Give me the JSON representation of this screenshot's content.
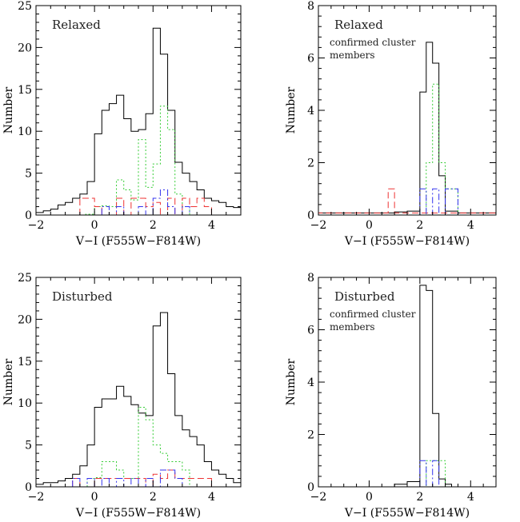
{
  "chart_data": [
    {
      "type": "histogram",
      "panel_label": "Relaxed",
      "panel_sublabel": [],
      "xlabel": "V−I (F555W−F814W)",
      "ylabel": "Number",
      "xlim": [
        -2,
        5
      ],
      "ylim": [
        0,
        25
      ],
      "xticks": [
        -2,
        0,
        2,
        4
      ],
      "yticks": [
        0,
        5,
        10,
        15,
        20,
        25
      ],
      "xtick_labels": [
        "−2",
        "0",
        "2",
        "4"
      ],
      "ytick_labels": [
        "0",
        "5",
        "10",
        "15",
        "20",
        "25"
      ],
      "series": [
        {
          "style": "solid",
          "color": "#000000",
          "edges": [
            -2.2,
            -2,
            -1.75,
            -1.5,
            -1.25,
            -1,
            -0.75,
            -0.5,
            -0.25,
            0,
            0.25,
            0.5,
            0.75,
            1,
            1.25,
            1.5,
            1.75,
            2,
            2.25,
            2.5,
            2.75,
            3,
            3.25,
            3.5,
            3.75,
            4,
            4.25,
            4.5,
            4.75,
            5
          ],
          "values": [
            0.3,
            0.3,
            0.5,
            0.7,
            1.2,
            1.5,
            2.0,
            2.5,
            4.0,
            9.7,
            12.5,
            13.3,
            14.3,
            11.5,
            10.0,
            10.2,
            12.1,
            22.3,
            19.2,
            12.5,
            6.3,
            5.0,
            4.0,
            3.0,
            2.0,
            1.7,
            1.5,
            1.0,
            0.9
          ]
        },
        {
          "style": "dotted",
          "color": "#33cc33",
          "edges": [
            -0.3,
            0,
            0.25,
            0.5,
            0.75,
            1,
            1.25,
            1.5,
            1.75,
            2,
            2.25,
            2.5,
            2.75,
            3,
            3.25,
            3.5
          ],
          "values": [
            0.1,
            1.0,
            1.1,
            1.0,
            4.2,
            3.0,
            1.8,
            9.0,
            3.3,
            6.1,
            13.0,
            10.2,
            2.5,
            1.0,
            0.0
          ]
        },
        {
          "style": "dashed",
          "color": "#ee3333",
          "edges": [
            -0.5,
            -0.25,
            0,
            0.25,
            0.5,
            0.75,
            1,
            1.25,
            1.5,
            1.75,
            2,
            2.25,
            2.5,
            2.75,
            3,
            3.25,
            3.5,
            3.75,
            4
          ],
          "values": [
            2.0,
            2.0,
            1.0,
            0.0,
            0.0,
            2.0,
            0.0,
            2.0,
            2.0,
            1.0,
            1.5,
            0.0,
            2.0,
            0.0,
            2.0,
            1.0,
            2.0,
            1.0
          ]
        },
        {
          "style": "dashdot",
          "color": "#3333ee",
          "edges": [
            0.25,
            0.5,
            0.75,
            1,
            1.25,
            1.5,
            1.75,
            2,
            2.25,
            2.5,
            2.75,
            3,
            3.25,
            3.5
          ],
          "values": [
            1.0,
            0.0,
            1.0,
            0.0,
            0.0,
            1.0,
            0.0,
            2.0,
            3.0,
            1.0,
            0.0,
            1.0,
            0.0
          ]
        }
      ]
    },
    {
      "type": "histogram",
      "panel_label": "Relaxed",
      "panel_sublabel": [
        "confirmed cluster",
        "members"
      ],
      "xlabel": "V−I (F555W−F814W)",
      "ylabel": "Number",
      "xlim": [
        -2,
        5
      ],
      "ylim": [
        0,
        8
      ],
      "xticks": [
        -2,
        0,
        2,
        4
      ],
      "yticks": [
        0,
        2,
        4,
        6,
        8
      ],
      "xtick_labels": [
        "−2",
        "0",
        "2",
        "4"
      ],
      "ytick_labels": [
        "0",
        "2",
        "4",
        "6",
        "8"
      ],
      "series": [
        {
          "style": "solid",
          "color": "#000000",
          "edges": [
            -2.2,
            1,
            1.5,
            2,
            2.25,
            2.5,
            2.75,
            3,
            3.5,
            5
          ],
          "values": [
            0.08,
            0.12,
            0.15,
            4.7,
            6.6,
            5.8,
            1.5,
            0.15,
            0.08
          ]
        },
        {
          "style": "dotted",
          "color": "#33cc33",
          "edges": [
            2,
            2.25,
            2.5,
            2.75,
            3,
            3.5
          ],
          "values": [
            0.0,
            2.0,
            5.0,
            2.0,
            1.0
          ]
        },
        {
          "style": "dashed",
          "color": "#ee3333",
          "edges": [
            -2.2,
            0.75,
            1,
            2,
            5
          ],
          "values": [
            0.08,
            1.0,
            0.08,
            0.08
          ]
        },
        {
          "style": "dashdot",
          "color": "#3333ee",
          "edges": [
            2,
            2.25,
            2.5,
            2.75,
            3,
            3.5
          ],
          "values": [
            1.0,
            0.0,
            1.0,
            0.0,
            1.0
          ]
        }
      ]
    },
    {
      "type": "histogram",
      "panel_label": "Disturbed",
      "panel_sublabel": [],
      "xlabel": "V−I (F555W−F814W)",
      "ylabel": "Number",
      "xlim": [
        -2,
        5
      ],
      "ylim": [
        0,
        25
      ],
      "xticks": [
        -2,
        0,
        2,
        4
      ],
      "yticks": [
        0,
        5,
        10,
        15,
        20,
        25
      ],
      "xtick_labels": [
        "−2",
        "0",
        "2",
        "4"
      ],
      "ytick_labels": [
        "0",
        "5",
        "10",
        "15",
        "20",
        "25"
      ],
      "series": [
        {
          "style": "solid",
          "color": "#000000",
          "edges": [
            -2.2,
            -2,
            -1.75,
            -1.5,
            -1.25,
            -1,
            -0.75,
            -0.5,
            -0.25,
            0,
            0.25,
            0.5,
            0.75,
            1,
            1.25,
            1.5,
            1.75,
            2,
            2.25,
            2.5,
            2.75,
            3,
            3.25,
            3.5,
            3.75,
            4,
            4.25,
            4.5,
            4.75,
            5
          ],
          "values": [
            0.3,
            0.3,
            0.5,
            0.5,
            0.7,
            1.0,
            1.5,
            2.5,
            5.0,
            9.5,
            10.5,
            10.5,
            12.0,
            10.8,
            9.8,
            8.8,
            8.5,
            19.2,
            20.8,
            13.5,
            8.5,
            6.8,
            6.0,
            5.0,
            3.0,
            2.0,
            1.5,
            1.0,
            0.5
          ]
        },
        {
          "style": "dotted",
          "color": "#33cc33",
          "edges": [
            -0.25,
            0,
            0.25,
            0.5,
            0.75,
            1,
            1.25,
            1.5,
            1.75,
            2,
            2.25,
            2.5,
            2.75,
            3,
            3.25
          ],
          "values": [
            1.0,
            1.1,
            3.0,
            3.0,
            2.0,
            1.0,
            1.0,
            9.5,
            8.0,
            5.0,
            4.0,
            3.0,
            3.0,
            2.0
          ]
        },
        {
          "style": "dashed",
          "color": "#ee3333",
          "edges": [
            -0.75,
            -0.5,
            0,
            0.5,
            1,
            1.5,
            1.75,
            2,
            2.25,
            2.5,
            2.75,
            3,
            3.25,
            3.5,
            3.75,
            4
          ],
          "values": [
            1.0,
            0.0,
            1.0,
            1.0,
            1.0,
            1.0,
            0.0,
            1.5,
            1.0,
            2.0,
            1.0,
            1.0,
            1.0,
            1.0,
            1.0
          ]
        },
        {
          "style": "dashdot",
          "color": "#3333ee",
          "edges": [
            -0.75,
            -0.5,
            -0.25,
            0,
            0.25,
            0.5,
            0.75,
            1,
            1.25,
            1.5,
            1.75,
            2,
            2.25,
            2.5,
            2.75,
            3
          ],
          "values": [
            1.0,
            0.0,
            1.0,
            0.0,
            1.0,
            0.0,
            1.0,
            0.0,
            1.0,
            0.0,
            1.0,
            0.0,
            2.0,
            2.0,
            1.0
          ]
        }
      ]
    },
    {
      "type": "histogram",
      "panel_label": "Disturbed",
      "panel_sublabel": [
        "confirmed cluster",
        "members"
      ],
      "xlabel": "V−I (F555W−F814W)",
      "ylabel": "Number",
      "xlim": [
        -2,
        5
      ],
      "ylim": [
        0,
        8
      ],
      "xticks": [
        -2,
        0,
        2,
        4
      ],
      "yticks": [
        0,
        2,
        4,
        6,
        8
      ],
      "xtick_labels": [
        "−2",
        "0",
        "2",
        "4"
      ],
      "ytick_labels": [
        "0",
        "2",
        "4",
        "6",
        "8"
      ],
      "series": [
        {
          "style": "solid",
          "color": "#000000",
          "edges": [
            1,
            1.5,
            2,
            2.25,
            2.5,
            2.75,
            3,
            3.25,
            3.5
          ],
          "values": [
            0.1,
            0.2,
            7.7,
            7.5,
            2.8,
            0.3,
            0.1,
            0.0
          ]
        },
        {
          "style": "dotted",
          "color": "#33cc33",
          "edges": [
            2,
            2.25,
            2.5,
            2.75,
            3,
            3.25
          ],
          "values": [
            0.0,
            1.0,
            1.0,
            1.0,
            0.0
          ]
        },
        {
          "style": "dashdot",
          "color": "#3333ee",
          "edges": [
            2,
            2.25,
            2.5,
            2.75,
            3
          ],
          "values": [
            1.0,
            0.0,
            1.0,
            0.0
          ]
        }
      ]
    }
  ]
}
